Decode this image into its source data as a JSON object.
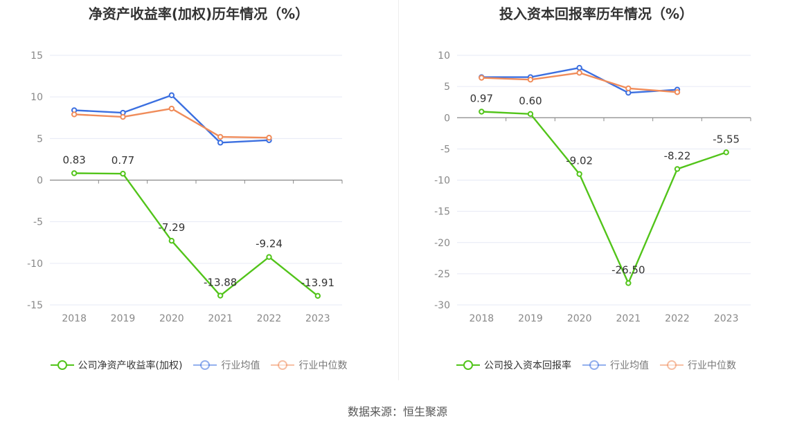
{
  "source": "数据来源：恒生聚源",
  "chart_data": [
    {
      "type": "line",
      "title": "净资产收益率(加权)历年情况（%）",
      "categories": [
        "2018",
        "2019",
        "2020",
        "2021",
        "2022",
        "2023"
      ],
      "ylim": [
        -15,
        15
      ],
      "yticks": [
        "15",
        "10",
        "5",
        "0",
        "-5",
        "-10",
        "-15"
      ],
      "grid": true,
      "legend_position": "bottom",
      "series": [
        {
          "name": "公司净资产收益率(加权)",
          "color": "#52c41a",
          "labels": true,
          "visible": true,
          "values": [
            0.83,
            0.77,
            -7.29,
            -13.88,
            -9.24,
            -13.91
          ],
          "value_labels": [
            "0.83",
            "0.77",
            "-7.29",
            "-13.88",
            "-9.24",
            "-13.91"
          ]
        },
        {
          "name": "行业均值",
          "color": "#3b6fe0",
          "labels": false,
          "visible": true,
          "values": [
            8.4,
            8.1,
            10.2,
            4.5,
            4.8,
            null
          ]
        },
        {
          "name": "行业中位数",
          "color": "#f08c5a",
          "labels": false,
          "visible": true,
          "values": [
            7.9,
            7.6,
            8.6,
            5.2,
            5.1,
            null
          ]
        }
      ]
    },
    {
      "type": "line",
      "title": "投入资本回报率历年情况（%）",
      "categories": [
        "2018",
        "2019",
        "2020",
        "2021",
        "2022",
        "2023"
      ],
      "ylim": [
        -30,
        10
      ],
      "yticks": [
        "10",
        "5",
        "0",
        "-5",
        "-10",
        "-15",
        "-20",
        "-25",
        "-30"
      ],
      "grid": true,
      "legend_position": "bottom",
      "series": [
        {
          "name": "公司投入资本回报率",
          "color": "#52c41a",
          "labels": true,
          "visible": true,
          "values": [
            0.97,
            0.6,
            -9.02,
            -26.5,
            -8.22,
            -5.55
          ],
          "value_labels": [
            "0.97",
            "0.60",
            "-9.02",
            "-26.50",
            "-8.22",
            "-5.55"
          ]
        },
        {
          "name": "行业均值",
          "color": "#3b6fe0",
          "labels": false,
          "visible": true,
          "values": [
            6.5,
            6.5,
            8.0,
            4.0,
            4.5,
            null
          ]
        },
        {
          "name": "行业中位数",
          "color": "#f08c5a",
          "labels": false,
          "visible": true,
          "values": [
            6.4,
            6.1,
            7.2,
            4.7,
            4.1,
            null
          ]
        }
      ]
    }
  ]
}
